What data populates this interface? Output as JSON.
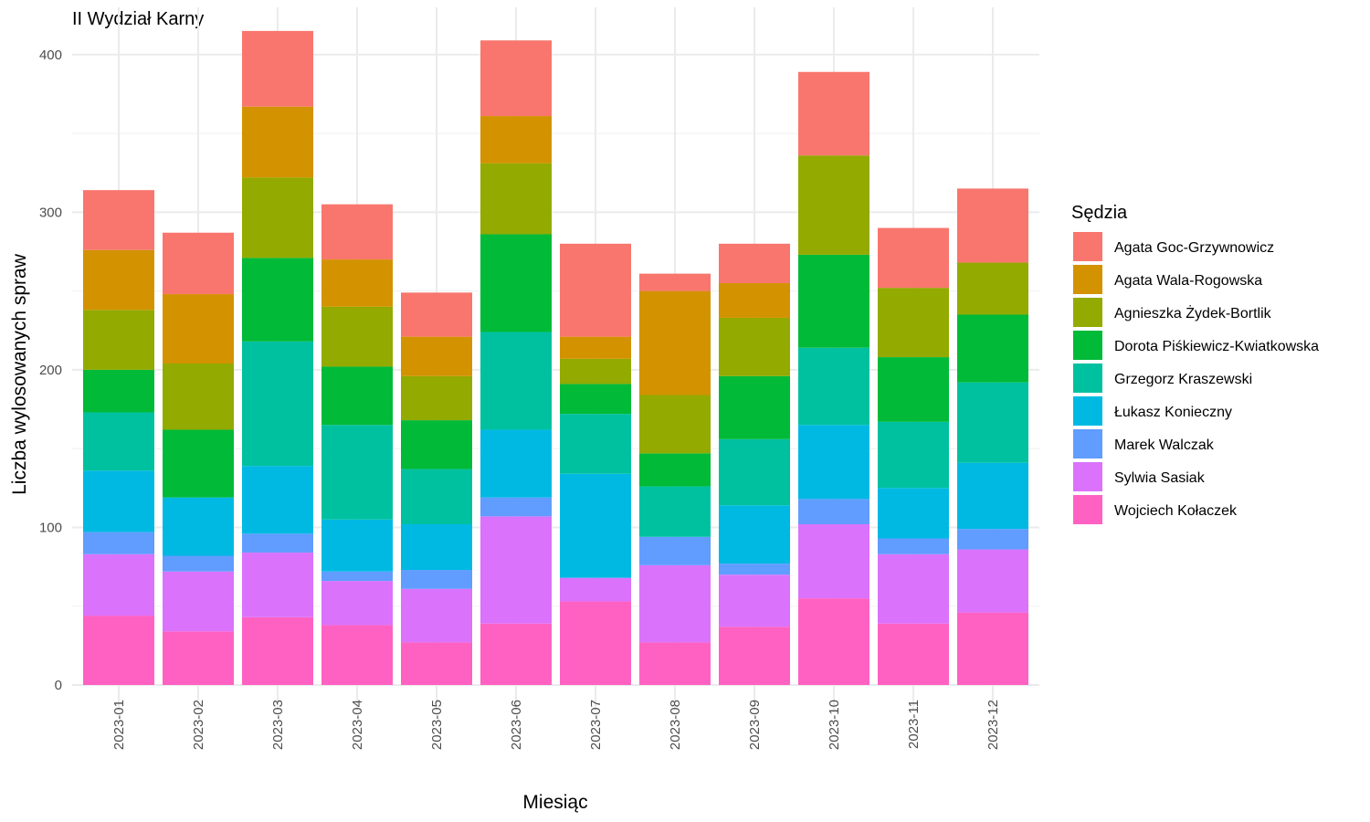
{
  "chart_data": {
    "type": "bar",
    "stacked": true,
    "title": "II Wydział Karny",
    "xlabel": "Miesiąc",
    "ylabel": "Liczba wylosowanych spraw",
    "ylim": [
      0,
      430
    ],
    "yticks": [
      0,
      100,
      200,
      300,
      400
    ],
    "grid": true,
    "legend_title": "Sędzia",
    "legend_position": "right",
    "categories": [
      "2023-01",
      "2023-02",
      "2023-03",
      "2023-04",
      "2023-05",
      "2023-06",
      "2023-07",
      "2023-08",
      "2023-09",
      "2023-10",
      "2023-11",
      "2023-12"
    ],
    "series": [
      {
        "name": "Agata Goc-Grzywnowicz",
        "color": "#F8766D",
        "values": [
          38,
          39,
          48,
          35,
          28,
          48,
          59,
          11,
          25,
          53,
          38,
          47
        ]
      },
      {
        "name": "Agata Wala-Rogowska",
        "color": "#D39200",
        "values": [
          38,
          44,
          45,
          30,
          25,
          30,
          14,
          66,
          22,
          0,
          0,
          0
        ]
      },
      {
        "name": "Agnieszka Żydek-Bortlik",
        "color": "#93AA00",
        "values": [
          38,
          42,
          51,
          38,
          28,
          45,
          16,
          37,
          37,
          63,
          44,
          33
        ]
      },
      {
        "name": "Dorota Piśkiewicz-Kwiatkowska",
        "color": "#00BA38",
        "values": [
          27,
          43,
          53,
          37,
          31,
          62,
          19,
          21,
          40,
          59,
          41,
          43
        ]
      },
      {
        "name": "Grzegorz Kraszewski",
        "color": "#00C19F",
        "values": [
          37,
          0,
          79,
          60,
          35,
          62,
          38,
          32,
          42,
          49,
          42,
          51
        ]
      },
      {
        "name": "Łukasz Konieczny",
        "color": "#00B9E3",
        "values": [
          39,
          37,
          43,
          33,
          29,
          43,
          66,
          0,
          37,
          47,
          32,
          42
        ]
      },
      {
        "name": "Marek Walczak",
        "color": "#619CFF",
        "values": [
          14,
          10,
          12,
          6,
          12,
          12,
          0,
          18,
          7,
          16,
          10,
          13
        ]
      },
      {
        "name": "Sylwia Sasiak",
        "color": "#DB72FB",
        "values": [
          39,
          38,
          41,
          28,
          34,
          68,
          15,
          49,
          33,
          47,
          44,
          40
        ]
      },
      {
        "name": "Wojciech Kołaczek",
        "color": "#FF61C3",
        "values": [
          44,
          34,
          43,
          38,
          27,
          39,
          53,
          27,
          37,
          55,
          39,
          46
        ]
      }
    ]
  }
}
